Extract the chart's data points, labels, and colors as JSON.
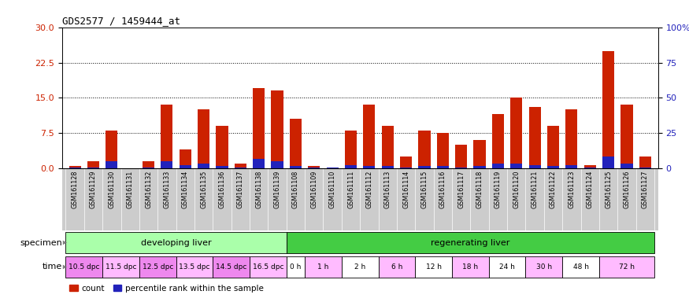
{
  "title": "GDS2577 / 1459444_at",
  "samples": [
    "GSM161128",
    "GSM161129",
    "GSM161130",
    "GSM161131",
    "GSM161132",
    "GSM161133",
    "GSM161134",
    "GSM161135",
    "GSM161136",
    "GSM161137",
    "GSM161138",
    "GSM161139",
    "GSM161108",
    "GSM161109",
    "GSM161110",
    "GSM161111",
    "GSM161112",
    "GSM161113",
    "GSM161114",
    "GSM161115",
    "GSM161116",
    "GSM161117",
    "GSM161118",
    "GSM161119",
    "GSM161120",
    "GSM161121",
    "GSM161122",
    "GSM161123",
    "GSM161124",
    "GSM161125",
    "GSM161126",
    "GSM161127"
  ],
  "count_values": [
    0.6,
    1.5,
    8.0,
    0.0,
    1.5,
    13.5,
    4.0,
    12.5,
    9.0,
    1.0,
    17.0,
    16.5,
    10.5,
    0.5,
    0.2,
    8.0,
    13.5,
    9.0,
    2.5,
    8.0,
    7.5,
    5.0,
    6.0,
    11.5,
    15.0,
    13.0,
    9.0,
    12.5,
    0.7,
    25.0,
    13.5,
    2.5
  ],
  "percentile_values": [
    0.3,
    0.3,
    1.5,
    0.0,
    0.3,
    1.5,
    0.8,
    1.0,
    0.5,
    0.3,
    2.0,
    1.5,
    0.5,
    0.3,
    0.3,
    0.8,
    0.5,
    0.5,
    0.3,
    0.5,
    0.5,
    0.3,
    0.5,
    1.0,
    1.0,
    0.8,
    0.5,
    0.8,
    0.3,
    2.5,
    1.0,
    0.3
  ],
  "ylim_left": [
    0,
    30
  ],
  "ylim_right": [
    0,
    100
  ],
  "yticks_left": [
    0,
    7.5,
    15,
    22.5,
    30
  ],
  "yticks_right": [
    0,
    25,
    50,
    75,
    100
  ],
  "bar_color_red": "#CC2200",
  "bar_color_blue": "#2222BB",
  "bg_color": "#FFFFFF",
  "plot_bg": "#FFFFFF",
  "xticklabel_bg": "#CCCCCC",
  "axis_label_color_red": "#CC2200",
  "axis_label_color_blue": "#2222BB",
  "specimen_groups": [
    {
      "label": "developing liver",
      "start": 0,
      "end": 12,
      "color": "#AAFFAA"
    },
    {
      "label": "regenerating liver",
      "start": 12,
      "end": 32,
      "color": "#44CC44"
    }
  ],
  "time_groups": [
    {
      "label": "10.5 dpc",
      "start": 0,
      "end": 2,
      "color": "#EE88EE"
    },
    {
      "label": "11.5 dpc",
      "start": 2,
      "end": 4,
      "color": "#FFBBFF"
    },
    {
      "label": "12.5 dpc",
      "start": 4,
      "end": 6,
      "color": "#EE88EE"
    },
    {
      "label": "13.5 dpc",
      "start": 6,
      "end": 8,
      "color": "#FFBBFF"
    },
    {
      "label": "14.5 dpc",
      "start": 8,
      "end": 10,
      "color": "#EE88EE"
    },
    {
      "label": "16.5 dpc",
      "start": 10,
      "end": 12,
      "color": "#FFBBFF"
    },
    {
      "label": "0 h",
      "start": 12,
      "end": 13,
      "color": "#FFFFFF"
    },
    {
      "label": "1 h",
      "start": 13,
      "end": 15,
      "color": "#FFBBFF"
    },
    {
      "label": "2 h",
      "start": 15,
      "end": 17,
      "color": "#FFFFFF"
    },
    {
      "label": "6 h",
      "start": 17,
      "end": 19,
      "color": "#FFBBFF"
    },
    {
      "label": "12 h",
      "start": 19,
      "end": 21,
      "color": "#FFFFFF"
    },
    {
      "label": "18 h",
      "start": 21,
      "end": 23,
      "color": "#FFBBFF"
    },
    {
      "label": "24 h",
      "start": 23,
      "end": 25,
      "color": "#FFFFFF"
    },
    {
      "label": "30 h",
      "start": 25,
      "end": 27,
      "color": "#FFBBFF"
    },
    {
      "label": "48 h",
      "start": 27,
      "end": 29,
      "color": "#FFFFFF"
    },
    {
      "label": "72 h",
      "start": 29,
      "end": 32,
      "color": "#FFBBFF"
    }
  ],
  "specimen_label": "specimen",
  "time_label": "time",
  "legend_items": [
    {
      "label": "count",
      "color": "#CC2200"
    },
    {
      "label": "percentile rank within the sample",
      "color": "#2222BB"
    }
  ]
}
